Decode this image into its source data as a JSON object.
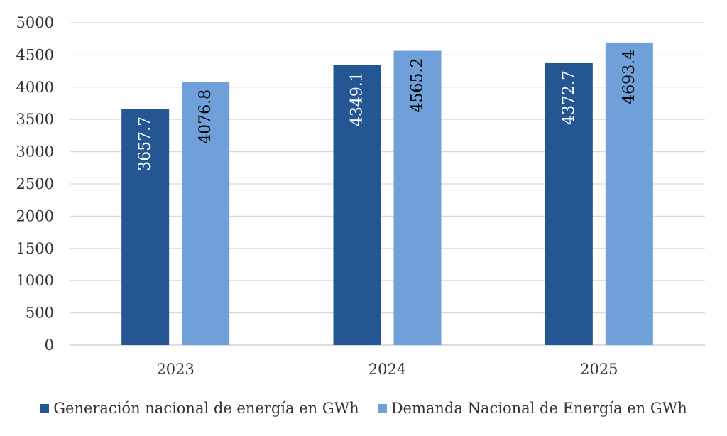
{
  "chart_data": {
    "type": "bar",
    "categories": [
      "2023",
      "2024",
      "2025"
    ],
    "series": [
      {
        "name": "Generación nacional de energía en GWh",
        "values": [
          3657.7,
          4349.1,
          4372.7
        ],
        "color": "#255694",
        "label_color": "#ffffff"
      },
      {
        "name": "Demanda Nacional de Energía en GWh",
        "values": [
          4076.8,
          4565.2,
          4693.4
        ],
        "color": "#70a0da",
        "label_color": "#000000"
      }
    ],
    "data_labels": [
      [
        "3657.7",
        "4349.1",
        "4372.7"
      ],
      [
        "4076.8",
        "4565.2",
        "4693.4"
      ]
    ],
    "yticks": [
      "0",
      "500",
      "1000",
      "1500",
      "2000",
      "2500",
      "3000",
      "3500",
      "4000",
      "4500",
      "5000"
    ],
    "ylim": [
      0,
      5000
    ],
    "grid": true,
    "legend_position": "bottom",
    "data_label_orientation": "vertical"
  }
}
